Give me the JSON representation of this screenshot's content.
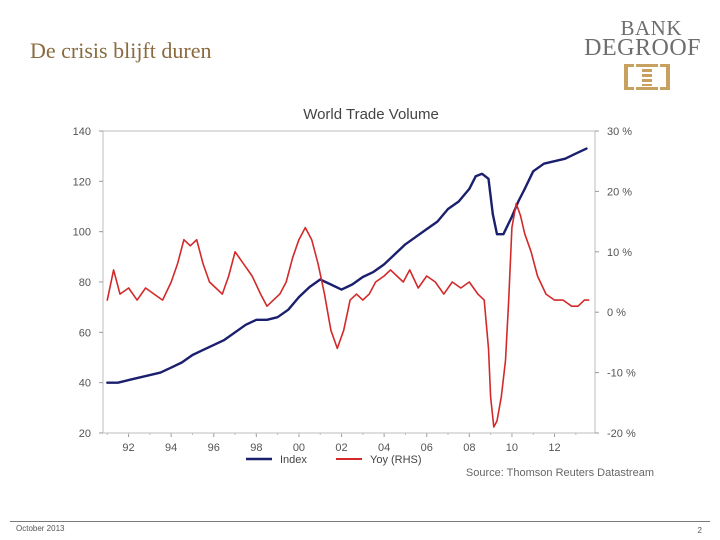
{
  "slide": {
    "title": "De crisis blijft duren",
    "date": "October 2013",
    "page_number": "2"
  },
  "logo": {
    "line1": "BANK",
    "line2": "DEGROOF",
    "mark": "degroof-emblem-icon"
  },
  "colors": {
    "title": "#8a6a3e",
    "index_series": "#1a1f6e",
    "yoy_series": "#d22a2a",
    "axis_text": "#555555",
    "gold": "#c8a060"
  },
  "chart_data": {
    "type": "line",
    "title": "World Trade Volume",
    "source": "Source: Thomson Reuters Datastream",
    "x_tick_labels": [
      "92",
      "94",
      "96",
      "98",
      "00",
      "02",
      "04",
      "06",
      "08",
      "10",
      "12"
    ],
    "x_tick_years": [
      1992,
      1994,
      1996,
      1998,
      2000,
      2002,
      2004,
      2006,
      2008,
      2010,
      2012
    ],
    "xlim": [
      1990.8,
      2013.9
    ],
    "left_axis": {
      "label": "Index",
      "ylim": [
        20,
        140
      ],
      "ticks": [
        "20",
        "40",
        "60",
        "80",
        "100",
        "120",
        "140"
      ]
    },
    "right_axis": {
      "label": "Yoy (RHS)",
      "ylim": [
        -20,
        30
      ],
      "ticks": [
        "-20 %",
        "-10 %",
        "0 %",
        "10 %",
        "20 %",
        "30 %"
      ]
    },
    "legend": [
      "Index",
      "Yoy (RHS)"
    ],
    "series": [
      {
        "name": "Index",
        "axis": "left",
        "x": [
          1991.0,
          1991.5,
          1992.0,
          1992.5,
          1993.0,
          1993.5,
          1994.0,
          1994.5,
          1995.0,
          1995.5,
          1996.0,
          1996.5,
          1997.0,
          1997.5,
          1998.0,
          1998.5,
          1999.0,
          1999.5,
          2000.0,
          2000.5,
          2001.0,
          2001.5,
          2002.0,
          2002.5,
          2003.0,
          2003.5,
          2004.0,
          2004.5,
          2005.0,
          2005.5,
          2006.0,
          2006.5,
          2007.0,
          2007.5,
          2008.0,
          2008.3,
          2008.6,
          2008.9,
          2009.1,
          2009.3,
          2009.6,
          2010.0,
          2010.3,
          2010.6,
          2011.0,
          2011.5,
          2012.0,
          2012.5,
          2013.0,
          2013.5
        ],
        "values": [
          40,
          40,
          41,
          42,
          43,
          44,
          46,
          48,
          51,
          53,
          55,
          57,
          60,
          63,
          65,
          65,
          66,
          69,
          74,
          78,
          81,
          79,
          77,
          79,
          82,
          84,
          87,
          91,
          95,
          98,
          101,
          104,
          109,
          112,
          117,
          122,
          123,
          121,
          107,
          99,
          99,
          106,
          112,
          117,
          124,
          127,
          128,
          129,
          131,
          133
        ]
      },
      {
        "name": "Yoy (RHS)",
        "axis": "right",
        "x": [
          1991.0,
          1991.3,
          1991.6,
          1992.0,
          1992.4,
          1992.8,
          1993.2,
          1993.6,
          1994.0,
          1994.3,
          1994.6,
          1994.9,
          1995.2,
          1995.5,
          1995.8,
          1996.1,
          1996.4,
          1996.7,
          1997.0,
          1997.4,
          1997.8,
          1998.2,
          1998.5,
          1998.8,
          1999.1,
          1999.4,
          1999.7,
          2000.0,
          2000.3,
          2000.6,
          2000.9,
          2001.2,
          2001.5,
          2001.8,
          2002.1,
          2002.4,
          2002.7,
          2003.0,
          2003.3,
          2003.6,
          2004.0,
          2004.3,
          2004.6,
          2004.9,
          2005.2,
          2005.6,
          2006.0,
          2006.4,
          2006.8,
          2007.2,
          2007.6,
          2008.0,
          2008.4,
          2008.7,
          2008.9,
          2009.0,
          2009.15,
          2009.3,
          2009.5,
          2009.7,
          2009.85,
          2010.0,
          2010.2,
          2010.4,
          2010.6,
          2010.9,
          2011.2,
          2011.6,
          2012.0,
          2012.4,
          2012.8,
          2013.1,
          2013.4,
          2013.6
        ],
        "values": [
          2,
          7,
          3,
          4,
          2,
          4,
          3,
          2,
          5,
          8,
          12,
          11,
          12,
          8,
          5,
          4,
          3,
          6,
          10,
          8,
          6,
          3,
          1,
          2,
          3,
          5,
          9,
          12,
          14,
          12,
          8,
          3,
          -3,
          -6,
          -3,
          2,
          3,
          2,
          3,
          5,
          6,
          7,
          6,
          5,
          7,
          4,
          6,
          5,
          3,
          5,
          4,
          5,
          3,
          2,
          -6,
          -14,
          -19,
          -18,
          -14,
          -8,
          2,
          14,
          18,
          16,
          13,
          10,
          6,
          3,
          2,
          2,
          1,
          1,
          2,
          2
        ]
      }
    ]
  }
}
